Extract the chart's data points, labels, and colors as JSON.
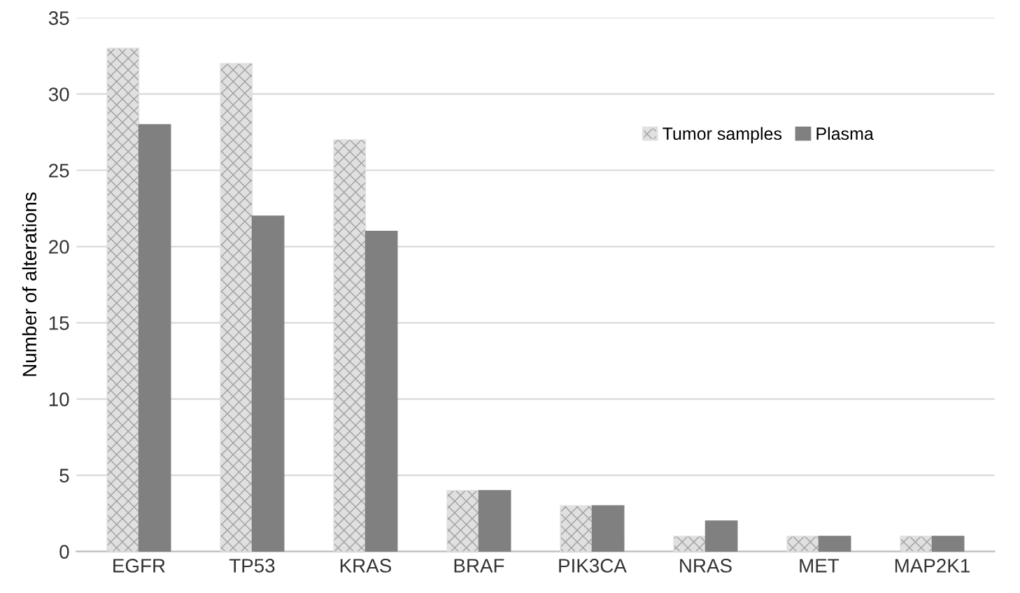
{
  "chart_data": {
    "type": "bar",
    "ylabel": "Number of alterations",
    "categories": [
      "EGFR",
      "TP53",
      "KRAS",
      "BRAF",
      "PIK3CA",
      "NRAS",
      "MET",
      "MAP2K1"
    ],
    "series": [
      {
        "name": "Tumor samples",
        "color": "#e0e0e0",
        "values": [
          33,
          32,
          27,
          4,
          3,
          1,
          1,
          1
        ]
      },
      {
        "name": "Plasma",
        "color": "#808080",
        "values": [
          28,
          22,
          21,
          4,
          3,
          2,
          1,
          1
        ]
      }
    ],
    "ylim": [
      0,
      35
    ],
    "yticks": [
      0,
      5,
      10,
      15,
      20,
      25,
      30,
      35
    ],
    "grid": "y",
    "legend": "top right"
  }
}
